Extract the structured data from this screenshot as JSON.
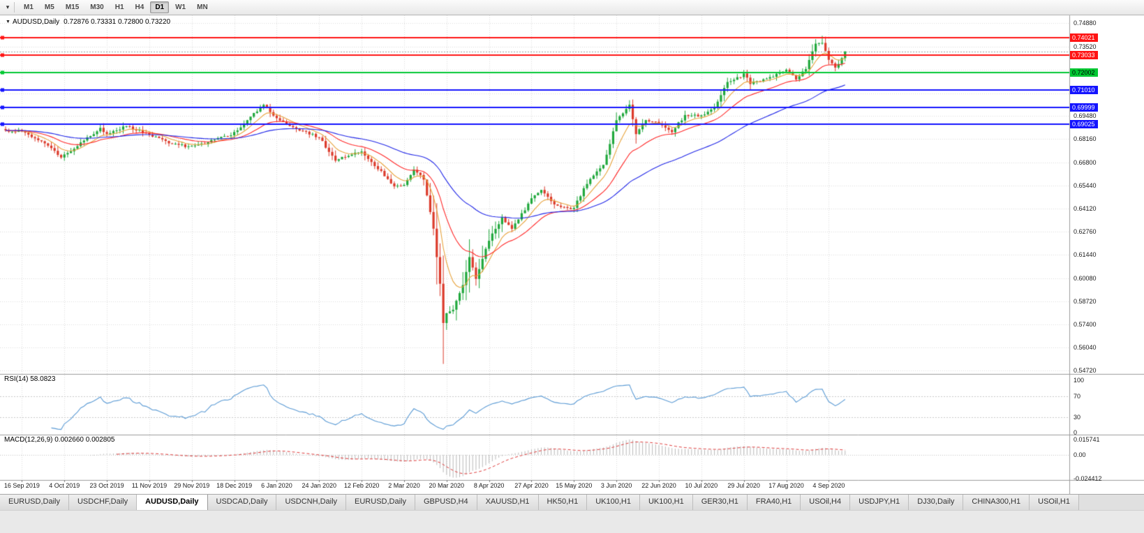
{
  "toolbar": {
    "timeframes": [
      "M1",
      "M5",
      "M15",
      "M30",
      "H1",
      "H4",
      "D1",
      "W1",
      "MN"
    ],
    "active": "D1"
  },
  "chart": {
    "title": "AUDUSD,Daily",
    "quote": "0.72876 0.73331 0.72800 0.73220",
    "ohlc": {
      "open": "0.72876",
      "high": "0.73331",
      "low": "0.72800",
      "close": "0.73220"
    },
    "price_axis": {
      "ticks": [
        "0.74880",
        "0.73520",
        "0.69480",
        "0.68160",
        "0.66800",
        "0.65440",
        "0.64120",
        "0.62760",
        "0.61440",
        "0.60080",
        "0.58720",
        "0.57400",
        "0.56040",
        "0.54720"
      ],
      "grid": [
        0.7488,
        0.7352,
        0.7216,
        0.708,
        0.6948,
        0.6816,
        0.668,
        0.6544,
        0.6412,
        0.6276,
        0.6144,
        0.6008,
        0.5872,
        0.574,
        0.5604,
        0.5472
      ]
    },
    "badges": [
      {
        "value": "0.74021",
        "bg": "#ff1414",
        "fg": "#ffffff"
      },
      {
        "value": "0.73033",
        "bg": "#ff1414",
        "fg": "#ffffff"
      },
      {
        "value": "0.72002",
        "bg": "#00c832",
        "fg": "#000000"
      },
      {
        "value": "0.71010",
        "bg": "#1414ff",
        "fg": "#ffffff"
      },
      {
        "value": "0.69999",
        "bg": "#1414ff",
        "fg": "#ffffff"
      },
      {
        "value": "0.69025",
        "bg": "#1414ff",
        "fg": "#ffffff"
      }
    ],
    "dates": [
      "16 Sep 2019",
      "4 Oct 2019",
      "23 Oct 2019",
      "11 Nov 2019",
      "29 Nov 2019",
      "18 Dec 2019",
      "6 Jan 2020",
      "24 Jan 2020",
      "12 Feb 2020",
      "2 Mar 2020",
      "20 Mar 2020",
      "8 Apr 2020",
      "27 Apr 2020",
      "15 May 2020",
      "3 Jun 2020",
      "22 Jun 2020",
      "10 Jul 2020",
      "29 Jul 2020",
      "17 Aug 2020",
      "4 Sep 2020"
    ]
  },
  "indicators": {
    "rsi": {
      "label": "RSI(14) 58.0823",
      "axis": [
        "100",
        "70",
        "30",
        "0"
      ]
    },
    "macd": {
      "label": "MACD(12,26,9) 0.002660 0.002805",
      "axis": [
        "0.015741",
        "0.00",
        "-0.024412"
      ]
    }
  },
  "tabs": {
    "items": [
      "EURUSD,Daily",
      "USDCHF,Daily",
      "AUDUSD,Daily",
      "USDCAD,Daily",
      "USDCNH,Daily",
      "EURUSD,Daily",
      "GBPUSD,H4",
      "XAUUSD,H1",
      "HK50,H1",
      "UK100,H1",
      "UK100,H1",
      "GER30,H1",
      "FRA40,H1",
      "USOil,H4",
      "USDJPY,H1",
      "DJ30,Daily",
      "CHINA300,H1",
      "USOil,H1"
    ],
    "active_index": 2
  },
  "chart_data": {
    "type": "candlestick",
    "symbol": "AUDUSD",
    "timeframe": "Daily",
    "n_candles": 258,
    "price_range": [
      0.5472,
      0.7488
    ],
    "current_price": 0.7322,
    "last_ohlc": {
      "open": 0.72876,
      "high": 0.73331,
      "low": 0.728,
      "close": 0.7322
    },
    "anchors": [
      [
        0,
        0.6865
      ],
      [
        5,
        0.686
      ],
      [
        13,
        0.6775
      ],
      [
        17,
        0.6705
      ],
      [
        21,
        0.676
      ],
      [
        29,
        0.688
      ],
      [
        31,
        0.6845
      ],
      [
        37,
        0.689
      ],
      [
        44,
        0.684
      ],
      [
        50,
        0.679
      ],
      [
        57,
        0.6768
      ],
      [
        64,
        0.681
      ],
      [
        70,
        0.685
      ],
      [
        75,
        0.694
      ],
      [
        79,
        0.702
      ],
      [
        83,
        0.693
      ],
      [
        90,
        0.687
      ],
      [
        96,
        0.6825
      ],
      [
        101,
        0.669
      ],
      [
        106,
        0.673
      ],
      [
        109,
        0.674
      ],
      [
        115,
        0.6625
      ],
      [
        119,
        0.654
      ],
      [
        122,
        0.655
      ],
      [
        125,
        0.664
      ],
      [
        128,
        0.6585
      ],
      [
        131,
        0.629
      ],
      [
        133,
        0.598
      ],
      [
        134,
        0.5745
      ],
      [
        135,
        0.58
      ],
      [
        137,
        0.583
      ],
      [
        140,
        0.5965
      ],
      [
        142,
        0.6135
      ],
      [
        144,
        0.6
      ],
      [
        148,
        0.623
      ],
      [
        152,
        0.636
      ],
      [
        155,
        0.629
      ],
      [
        161,
        0.6465
      ],
      [
        164,
        0.6515
      ],
      [
        168,
        0.644
      ],
      [
        172,
        0.6415
      ],
      [
        174,
        0.6415
      ],
      [
        178,
        0.656
      ],
      [
        183,
        0.6665
      ],
      [
        187,
        0.692
      ],
      [
        189,
        0.697
      ],
      [
        191,
        0.701
      ],
      [
        193,
        0.685
      ],
      [
        196,
        0.692
      ],
      [
        200,
        0.6905
      ],
      [
        204,
        0.686
      ],
      [
        208,
        0.695
      ],
      [
        213,
        0.695
      ],
      [
        217,
        0.7
      ],
      [
        221,
        0.714
      ],
      [
        226,
        0.719
      ],
      [
        228,
        0.714
      ],
      [
        232,
        0.7155
      ],
      [
        236,
        0.719
      ],
      [
        239,
        0.7215
      ],
      [
        242,
        0.716
      ],
      [
        245,
        0.722
      ],
      [
        248,
        0.7365
      ],
      [
        250,
        0.7375
      ],
      [
        252,
        0.728
      ],
      [
        254,
        0.723
      ],
      [
        255,
        0.7255
      ],
      [
        256,
        0.7285
      ],
      [
        257,
        0.7322
      ]
    ],
    "wick_overrides": {
      "134": {
        "low": 0.551
      },
      "250": {
        "high": 0.7414
      }
    },
    "x_labels": [
      "16 Sep 2019",
      "4 Oct 2019",
      "23 Oct 2019",
      "11 Nov 2019",
      "29 Nov 2019",
      "18 Dec 2019",
      "6 Jan 2020",
      "24 Jan 2020",
      "12 Feb 2020",
      "2 Mar 2020",
      "20 Mar 2020",
      "8 Apr 2020",
      "27 Apr 2020",
      "15 May 2020",
      "3 Jun 2020",
      "22 Jun 2020",
      "10 Jul 2020",
      "29 Jul 2020",
      "17 Aug 2020",
      "4 Sep 2020"
    ],
    "moving_averages": [
      {
        "period": 8,
        "color": "#e8a33b"
      },
      {
        "period": 21,
        "color": "#ff2828"
      },
      {
        "period": 55,
        "color": "#2228e8"
      }
    ],
    "horizontal_lines": [
      {
        "price": 0.74021,
        "color": "#ff1414",
        "width": 2
      },
      {
        "price": 0.73033,
        "color": "#ff1414",
        "width": 2
      },
      {
        "price": 0.72002,
        "color": "#00c832",
        "width": 2
      },
      {
        "price": 0.7101,
        "color": "#1414ff",
        "width": 2
      },
      {
        "price": 0.69999,
        "color": "#1414ff",
        "width": 2
      },
      {
        "price": 0.69025,
        "color": "#1414ff",
        "width": 2
      }
    ],
    "rsi": {
      "period": 14,
      "value": 58.0823,
      "levels": [
        70,
        30
      ],
      "range": [
        0,
        100
      ],
      "color": "#5b9bd5"
    },
    "macd": {
      "fast": 12,
      "slow": 26,
      "signal": 9,
      "values": [
        0.00266,
        0.002805
      ],
      "range": [
        -0.024412,
        0.015741
      ],
      "hist_color": "#b9b9b9",
      "signal_color": "#e03a3a"
    },
    "candle_colors": {
      "up": "#1fa83c",
      "down": "#dc3a2a"
    }
  }
}
